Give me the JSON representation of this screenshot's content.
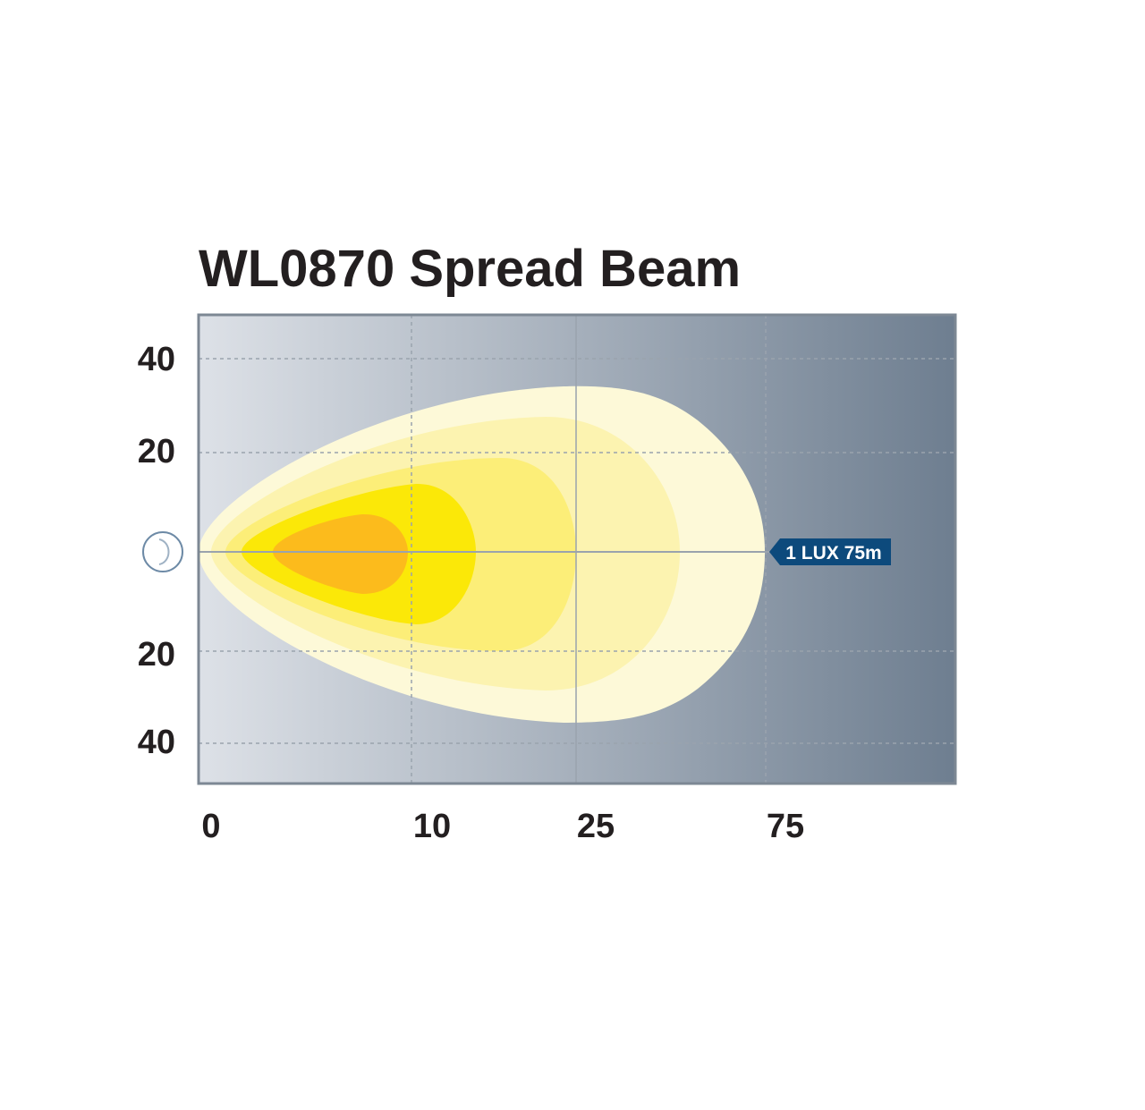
{
  "diagram": {
    "title": "WL0870 Spread Beam",
    "y_tick_labels": [
      "40",
      "20",
      "20",
      "40"
    ],
    "x_tick_labels": [
      "0",
      "10",
      "25",
      "75"
    ],
    "lux_label": "1 LUX 75m",
    "colors": {
      "background_left": "#dde1e7",
      "background_right": "#6e7e90",
      "outer_zone": "#fdf9d8",
      "zone_2": "#fcf3b0",
      "zone_3": "#fcee78",
      "zone_4": "#fbe808",
      "core_zone": "#fcbb1c",
      "lux_badge": "#0d4a7c",
      "grid": "#9aa3ad"
    }
  }
}
